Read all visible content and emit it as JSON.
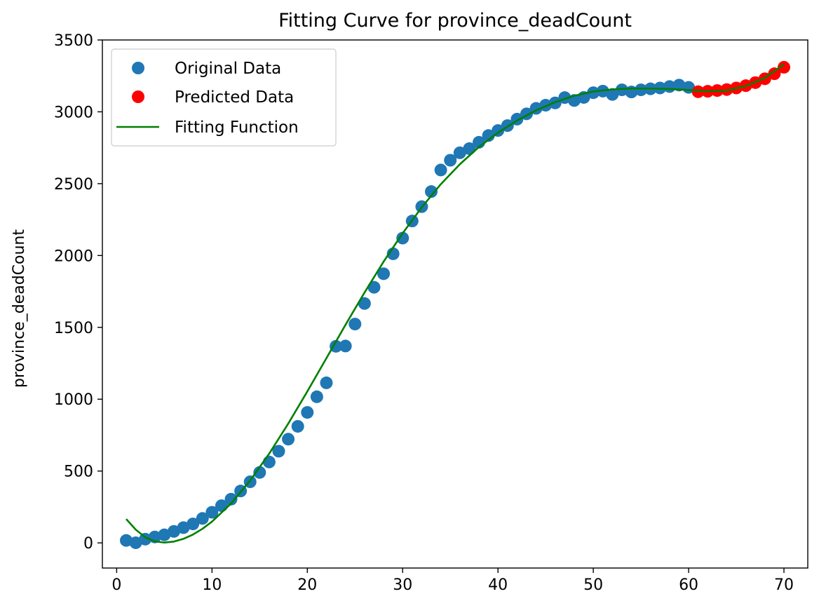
{
  "chart_data": {
    "type": "scatter",
    "title": "Fitting Curve for province_deadCount",
    "xlabel": "",
    "ylabel": "province_deadCount",
    "xlim": [
      -1.5,
      72.5
    ],
    "ylim": [
      -175,
      3500
    ],
    "xticks": [
      0,
      10,
      20,
      30,
      40,
      50,
      60,
      70
    ],
    "yticks": [
      0,
      500,
      1000,
      1500,
      2000,
      2500,
      3000,
      3500
    ],
    "grid": false,
    "legend_position": "upper left",
    "series": [
      {
        "name": "Original Data",
        "kind": "scatter",
        "color": "#1f77b4",
        "x": [
          1,
          2,
          3,
          4,
          5,
          6,
          7,
          8,
          9,
          10,
          11,
          12,
          13,
          14,
          15,
          16,
          17,
          18,
          19,
          20,
          21,
          22,
          23,
          24,
          25,
          26,
          27,
          28,
          29,
          30,
          31,
          32,
          33,
          34,
          35,
          36,
          37,
          38,
          39,
          40,
          41,
          42,
          43,
          44,
          45,
          46,
          47,
          48,
          49,
          50,
          51,
          52,
          53,
          54,
          55,
          56,
          57,
          58,
          59,
          60
        ],
        "y": [
          17,
          1,
          26,
          41,
          56,
          80,
          106,
          132,
          170,
          213,
          259,
          304,
          361,
          425,
          490,
          563,
          638,
          722,
          811,
          908,
          1017,
          1114,
          1368,
          1370,
          1523,
          1666,
          1779,
          1873,
          2012,
          2121,
          2240,
          2340,
          2445,
          2595,
          2663,
          2715,
          2744,
          2788,
          2835,
          2870,
          2904,
          2949,
          2986,
          3024,
          3046,
          3062,
          3099,
          3079,
          3100,
          3133,
          3144,
          3121,
          3153,
          3138,
          3153,
          3160,
          3166,
          3176,
          3186,
          3170
        ]
      },
      {
        "name": "Predicted Data",
        "kind": "scatter",
        "color": "#ff0000",
        "x": [
          61,
          62,
          63,
          64,
          65,
          66,
          67,
          68,
          69,
          70
        ],
        "y": [
          3140,
          3143,
          3148,
          3155,
          3166,
          3182,
          3203,
          3230,
          3265,
          3310
        ]
      },
      {
        "name": "Fitting Function",
        "kind": "line",
        "color": "#008000",
        "x": [
          1,
          2,
          3,
          4,
          5,
          6,
          7,
          8,
          9,
          10,
          12,
          14,
          16,
          18,
          20,
          22,
          24,
          26,
          28,
          30,
          32,
          34,
          36,
          38,
          40,
          42,
          44,
          46,
          48,
          50,
          52,
          54,
          56,
          58,
          60,
          62,
          64,
          66,
          68,
          70
        ],
        "y": [
          166,
          92,
          39,
          11,
          2,
          9,
          28,
          58,
          98,
          148,
          274,
          434,
          621,
          830,
          1054,
          1285,
          1517,
          1742,
          1957,
          2155,
          2335,
          2496,
          2635,
          2755,
          2855,
          2939,
          3010,
          3067,
          3112,
          3141,
          3156,
          3162,
          3162,
          3159,
          3152,
          3143,
          3148,
          3179,
          3236,
          3330
        ]
      }
    ]
  }
}
